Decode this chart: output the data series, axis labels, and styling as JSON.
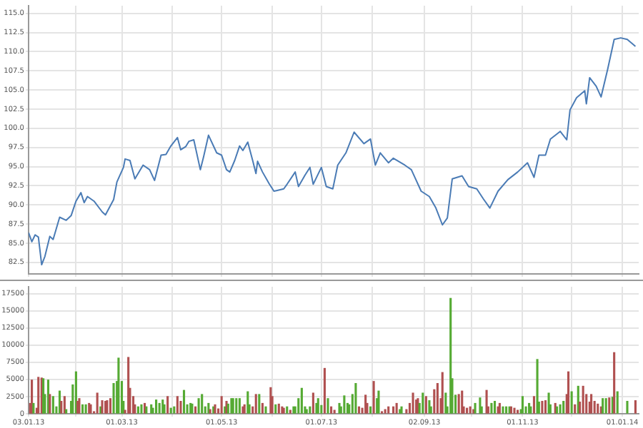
{
  "chart_data": [
    {
      "type": "line",
      "tick_labels": "y",
      "grid": true,
      "marker": "none",
      "line_style": "solid",
      "xlim": [
        "2013-01-03",
        "2014-01-11"
      ],
      "xticks": [
        {
          "value": "2013-01-03",
          "label": null
        },
        {
          "value": "2013-02-01",
          "label": null
        },
        {
          "value": "2013-03-01",
          "label": null
        },
        {
          "value": "2013-04-01",
          "label": null
        },
        {
          "value": "2013-05-01",
          "label": null
        },
        {
          "value": "2013-06-01",
          "label": null
        },
        {
          "value": "2013-07-01",
          "label": null
        },
        {
          "value": "2013-08-01",
          "label": null
        },
        {
          "value": "2013-09-02",
          "label": null
        },
        {
          "value": "2013-10-01",
          "label": null
        },
        {
          "value": "2013-11-01",
          "label": null
        },
        {
          "value": "2013-12-01",
          "label": null
        },
        {
          "value": "2014-01-01",
          "label": null
        }
      ],
      "ylim": [
        81,
        116
      ],
      "yticks": [
        {
          "value": 82.5,
          "label": "82.5"
        },
        {
          "value": 85,
          "label": "85.0"
        },
        {
          "value": 87.5,
          "label": "87.5"
        },
        {
          "value": 90,
          "label": "90.0"
        },
        {
          "value": 92.5,
          "label": "92.5"
        },
        {
          "value": 95,
          "label": "95.0"
        },
        {
          "value": 97.5,
          "label": "97.5"
        },
        {
          "value": 100,
          "label": "100.0"
        },
        {
          "value": 102.5,
          "label": "102.5"
        },
        {
          "value": 105,
          "label": "105.0"
        },
        {
          "value": 107.5,
          "label": "107.5"
        },
        {
          "value": 110,
          "label": "110.0"
        },
        {
          "value": 112.5,
          "label": "112.5"
        },
        {
          "value": 115,
          "label": "115.0"
        }
      ],
      "x": [
        "2013-01-03",
        "2013-01-05",
        "2013-01-07",
        "2013-01-09",
        "2013-01-11",
        "2013-01-13",
        "2013-01-16",
        "2013-01-18",
        "2013-01-22",
        "2013-01-26",
        "2013-01-29",
        "2013-02-01",
        "2013-02-04",
        "2013-02-06",
        "2013-02-08",
        "2013-02-12",
        "2013-02-17",
        "2013-02-19",
        "2013-02-24",
        "2013-02-26",
        "2013-03-02",
        "2013-03-03",
        "2013-03-06",
        "2013-03-09",
        "2013-03-14",
        "2013-03-18",
        "2013-03-21",
        "2013-03-25",
        "2013-03-28",
        "2013-03-31",
        "2013-04-04",
        "2013-04-06",
        "2013-04-09",
        "2013-04-11",
        "2013-04-14",
        "2013-04-18",
        "2013-04-20",
        "2013-04-23",
        "2013-04-28",
        "2013-05-01",
        "2013-05-04",
        "2013-05-06",
        "2013-05-09",
        "2013-05-12",
        "2013-05-14",
        "2013-05-17",
        "2013-05-20",
        "2013-05-22",
        "2013-05-23",
        "2013-05-26",
        "2013-05-30",
        "2013-06-02",
        "2013-06-04",
        "2013-06-08",
        "2013-06-10",
        "2013-06-15",
        "2013-06-17",
        "2013-06-21",
        "2013-06-24",
        "2013-06-26",
        "2013-07-01",
        "2013-07-04",
        "2013-07-08",
        "2013-07-11",
        "2013-07-16",
        "2013-07-21",
        "2013-07-27",
        "2013-07-31",
        "2013-08-03",
        "2013-08-06",
        "2013-08-11",
        "2013-08-14",
        "2013-08-21",
        "2013-08-25",
        "2013-08-31",
        "2013-09-05",
        "2013-09-09",
        "2013-09-13",
        "2013-09-16",
        "2013-09-19",
        "2013-09-25",
        "2013-09-29",
        "2013-10-04",
        "2013-10-08",
        "2013-10-12",
        "2013-10-17",
        "2013-10-23",
        "2013-10-29",
        "2013-11-04",
        "2013-11-08",
        "2013-11-11",
        "2013-11-15",
        "2013-11-18",
        "2013-11-24",
        "2013-11-28",
        "2013-11-30",
        "2013-12-04",
        "2013-12-09",
        "2013-12-10",
        "2013-12-12",
        "2013-12-16",
        "2013-12-19",
        "2013-12-23",
        "2013-12-27",
        "2013-12-31",
        "2014-01-04",
        "2014-01-09"
      ],
      "series": [
        {
          "color": "#4a7bb5",
          "values": [
            86.4,
            85.2,
            86.1,
            85.8,
            82.2,
            83.3,
            85.9,
            85.5,
            88.4,
            88.0,
            88.6,
            90.5,
            91.6,
            90.3,
            91.1,
            90.5,
            89.1,
            88.7,
            90.7,
            93.0,
            94.9,
            96.0,
            95.8,
            93.4,
            95.2,
            94.6,
            93.2,
            96.5,
            96.6,
            97.7,
            98.8,
            97.2,
            97.6,
            98.3,
            98.5,
            94.6,
            96.3,
            99.1,
            96.8,
            96.5,
            94.6,
            94.3,
            95.8,
            97.7,
            97.1,
            98.2,
            95.8,
            94.1,
            95.7,
            94.3,
            92.8,
            91.8,
            91.9,
            92.1,
            92.7,
            94.3,
            92.4,
            93.9,
            94.9,
            92.7,
            94.9,
            92.4,
            92.1,
            95.2,
            96.8,
            99.5,
            98.0,
            98.6,
            95.2,
            96.8,
            95.5,
            96.1,
            95.2,
            94.6,
            91.8,
            91.1,
            89.6,
            87.4,
            88.3,
            93.4,
            93.8,
            92.4,
            92.1,
            90.8,
            89.6,
            91.8,
            93.3,
            94.3,
            95.5,
            93.6,
            96.5,
            96.5,
            98.6,
            99.6,
            98.5,
            102.4,
            104.0,
            104.9,
            103.2,
            106.6,
            105.5,
            104.1,
            107.7,
            111.6,
            111.8,
            111.6,
            110.7
          ]
        }
      ]
    },
    {
      "type": "bar",
      "grid": true,
      "xlim": [
        "2013-01-03",
        "2014-01-11"
      ],
      "xticks": [
        {
          "value": "2013-01-03",
          "label": "03.01.13"
        },
        {
          "value": "2013-02-01",
          "label": null
        },
        {
          "value": "2013-03-01",
          "label": "01.03.13"
        },
        {
          "value": "2013-04-01",
          "label": null
        },
        {
          "value": "2013-05-01",
          "label": "01.05.13"
        },
        {
          "value": "2013-06-01",
          "label": null
        },
        {
          "value": "2013-07-01",
          "label": "01.07.13"
        },
        {
          "value": "2013-08-01",
          "label": null
        },
        {
          "value": "2013-09-02",
          "label": "02.09.13"
        },
        {
          "value": "2013-10-01",
          "label": null
        },
        {
          "value": "2013-11-01",
          "label": "01.11.13"
        },
        {
          "value": "2013-12-01",
          "label": null
        },
        {
          "value": "2014-01-01",
          "label": "01.01.14"
        }
      ],
      "ylim": [
        0,
        18500
      ],
      "yticks": [
        0,
        2500,
        5000,
        7500,
        10000,
        12500,
        15000,
        17500
      ],
      "x": [
        "2013-01-04",
        "2013-01-05",
        "2013-01-06",
        "2013-01-08",
        "2013-01-09",
        "2013-01-11",
        "2013-01-12",
        "2013-01-13",
        "2013-01-15",
        "2013-01-16",
        "2013-01-18",
        "2013-01-20",
        "2013-01-22",
        "2013-01-23",
        "2013-01-25",
        "2013-01-26",
        "2013-01-29",
        "2013-01-30",
        "2013-02-01",
        "2013-02-02",
        "2013-02-03",
        "2013-02-05",
        "2013-02-07",
        "2013-02-09",
        "2013-02-10",
        "2013-02-12",
        "2013-02-14",
        "2013-02-16",
        "2013-02-17",
        "2013-02-19",
        "2013-02-20",
        "2013-02-22",
        "2013-02-24",
        "2013-02-26",
        "2013-02-27",
        "2013-03-01",
        "2013-03-02",
        "2013-03-03",
        "2013-03-05",
        "2013-03-06",
        "2013-03-08",
        "2013-03-09",
        "2013-03-11",
        "2013-03-13",
        "2013-03-15",
        "2013-03-16",
        "2013-03-19",
        "2013-03-20",
        "2013-03-22",
        "2013-03-24",
        "2013-03-26",
        "2013-03-27",
        "2013-03-29",
        "2013-03-31",
        "2013-04-02",
        "2013-04-04",
        "2013-04-06",
        "2013-04-08",
        "2013-04-10",
        "2013-04-12",
        "2013-04-13",
        "2013-04-15",
        "2013-04-17",
        "2013-04-19",
        "2013-04-21",
        "2013-04-23",
        "2013-04-24",
        "2013-04-26",
        "2013-04-27",
        "2013-04-29",
        "2013-05-01",
        "2013-05-03",
        "2013-05-04",
        "2013-05-05",
        "2013-05-07",
        "2013-05-08",
        "2013-05-10",
        "2013-05-12",
        "2013-05-14",
        "2013-05-15",
        "2013-05-17",
        "2013-05-18",
        "2013-05-20",
        "2013-05-22",
        "2013-05-24",
        "2013-05-26",
        "2013-05-28",
        "2013-05-31",
        "2013-06-01",
        "2013-06-03",
        "2013-06-05",
        "2013-06-07",
        "2013-06-08",
        "2013-06-10",
        "2013-06-12",
        "2013-06-14",
        "2013-06-15",
        "2013-06-17",
        "2013-06-19",
        "2013-06-21",
        "2013-06-22",
        "2013-06-24",
        "2013-06-26",
        "2013-06-28",
        "2013-06-29",
        "2013-07-01",
        "2013-07-03",
        "2013-07-05",
        "2013-07-07",
        "2013-07-09",
        "2013-07-12",
        "2013-07-13",
        "2013-07-15",
        "2013-07-17",
        "2013-07-18",
        "2013-07-20",
        "2013-07-22",
        "2013-07-24",
        "2013-07-26",
        "2013-07-28",
        "2013-07-29",
        "2013-07-31",
        "2013-08-02",
        "2013-08-04",
        "2013-08-05",
        "2013-08-07",
        "2013-08-09",
        "2013-08-11",
        "2013-08-14",
        "2013-08-16",
        "2013-08-18",
        "2013-08-19",
        "2013-08-22",
        "2013-08-24",
        "2013-08-26",
        "2013-08-28",
        "2013-08-29",
        "2013-08-30",
        "2013-09-01",
        "2013-09-03",
        "2013-09-05",
        "2013-09-06",
        "2013-09-08",
        "2013-09-10",
        "2013-09-12",
        "2013-09-13",
        "2013-09-15",
        "2013-09-16",
        "2013-09-18",
        "2013-09-19",
        "2013-09-21",
        "2013-09-23",
        "2013-09-25",
        "2013-09-26",
        "2013-09-28",
        "2013-09-30",
        "2013-10-02",
        "2013-10-03",
        "2013-10-06",
        "2013-10-07",
        "2013-10-10",
        "2013-10-11",
        "2013-10-13",
        "2013-10-15",
        "2013-10-17",
        "2013-10-18",
        "2013-10-20",
        "2013-10-22",
        "2013-10-24",
        "2013-10-25",
        "2013-10-27",
        "2013-10-29",
        "2013-10-31",
        "2013-11-01",
        "2013-11-03",
        "2013-11-05",
        "2013-11-06",
        "2013-11-08",
        "2013-11-10",
        "2013-11-11",
        "2013-11-13",
        "2013-11-15",
        "2013-11-17",
        "2013-11-18",
        "2013-11-21",
        "2013-11-22",
        "2013-11-24",
        "2013-11-26",
        "2013-11-28",
        "2013-11-29",
        "2013-12-01",
        "2013-12-03",
        "2013-12-05",
        "2013-12-06",
        "2013-12-08",
        "2013-12-10",
        "2013-12-12",
        "2013-12-13",
        "2013-12-15",
        "2013-12-17",
        "2013-12-19",
        "2013-12-20",
        "2013-12-22",
        "2013-12-24",
        "2013-12-26",
        "2013-12-27",
        "2013-12-29",
        "2014-01-04",
        "2014-01-09"
      ],
      "values": [
        1500,
        4900,
        1500,
        800,
        5300,
        5200,
        5100,
        2800,
        4900,
        2800,
        2500,
        1000,
        3300,
        1800,
        2500,
        600,
        1800,
        4200,
        6100,
        1800,
        2200,
        1300,
        1300,
        1500,
        1300,
        300,
        3000,
        1000,
        1900,
        1800,
        1900,
        2200,
        4400,
        4700,
        8100,
        4700,
        1800,
        500,
        8200,
        3700,
        2500,
        1300,
        1000,
        1300,
        1500,
        1000,
        1300,
        800,
        2000,
        1500,
        2000,
        1300,
        2500,
        800,
        1000,
        2500,
        1800,
        3400,
        1300,
        1500,
        1400,
        1000,
        2200,
        2800,
        1000,
        1500,
        600,
        1000,
        1300,
        700,
        2500,
        1000,
        1800,
        1400,
        2200,
        2200,
        2200,
        2200,
        1000,
        1300,
        3200,
        1300,
        1000,
        2800,
        2800,
        1500,
        1000,
        3800,
        2500,
        1300,
        1400,
        1000,
        800,
        1000,
        500,
        1000,
        1000,
        2200,
        3700,
        1000,
        600,
        1000,
        3000,
        1500,
        2200,
        1200,
        6600,
        2200,
        1000,
        500,
        1500,
        1000,
        2600,
        1500,
        1300,
        2800,
        4400,
        1000,
        800,
        2700,
        1500,
        1000,
        4700,
        2200,
        3300,
        300,
        600,
        1000,
        1000,
        1500,
        600,
        1000,
        600,
        1500,
        3000,
        2000,
        2200,
        1500,
        3000,
        2500,
        1900,
        1000,
        3500,
        4400,
        2200,
        6000,
        3000,
        1000,
        16800,
        5100,
        2700,
        2800,
        3300,
        1000,
        800,
        1000,
        600,
        1500,
        2300,
        1000,
        3400,
        1000,
        1500,
        1800,
        1000,
        1500,
        1000,
        1000,
        1000,
        1000,
        800,
        500,
        600,
        2500,
        1000,
        1500,
        1000,
        2500,
        7900,
        1700,
        1800,
        1900,
        3000,
        1300,
        1500,
        1000,
        1300,
        1800,
        2800,
        6100,
        3200,
        1300,
        4000,
        1700,
        4000,
        2800,
        1700,
        2800,
        1800,
        1400,
        1000,
        2200,
        2200,
        2300,
        2400,
        8900,
        3200,
        1800,
        1900
      ],
      "colors": [
        "#b05050",
        "#b05050",
        "#55aa33",
        "#b05050",
        "#b05050",
        "#b05050",
        "#55aa33",
        "#55aa33",
        "#55aa33",
        "#b05050",
        "#55aa33",
        "#55aa33",
        "#55aa33",
        "#b05050",
        "#b05050",
        "#55aa33",
        "#55aa33",
        "#55aa33",
        "#55aa33",
        "#b05050",
        "#b05050",
        "#55aa33",
        "#55aa33",
        "#b05050",
        "#b05050",
        "#b05050",
        "#b05050",
        "#55aa33",
        "#b05050",
        "#b05050",
        "#b05050",
        "#b05050",
        "#55aa33",
        "#55aa33",
        "#55aa33",
        "#55aa33",
        "#55aa33",
        "#b05050",
        "#b05050",
        "#b05050",
        "#b05050",
        "#b05050",
        "#55aa33",
        "#55aa33",
        "#b05050",
        "#55aa33",
        "#55aa33",
        "#55aa33",
        "#55aa33",
        "#55aa33",
        "#55aa33",
        "#55aa33",
        "#b05050",
        "#55aa33",
        "#55aa33",
        "#b05050",
        "#b05050",
        "#55aa33",
        "#55aa33",
        "#55aa33",
        "#55aa33",
        "#b05050",
        "#55aa33",
        "#55aa33",
        "#55aa33",
        "#55aa33",
        "#b05050",
        "#55aa33",
        "#b05050",
        "#b05050",
        "#b05050",
        "#55aa33",
        "#b05050",
        "#55aa33",
        "#55aa33",
        "#55aa33",
        "#55aa33",
        "#55aa33",
        "#b05050",
        "#b05050",
        "#55aa33",
        "#55aa33",
        "#b05050",
        "#b05050",
        "#55aa33",
        "#b05050",
        "#55aa33",
        "#b05050",
        "#b05050",
        "#55aa33",
        "#b05050",
        "#b05050",
        "#b05050",
        "#55aa33",
        "#b05050",
        "#55aa33",
        "#55aa33",
        "#55aa33",
        "#55aa33",
        "#55aa33",
        "#55aa33",
        "#55aa33",
        "#b05050",
        "#55aa33",
        "#55aa33",
        "#55aa33",
        "#b05050",
        "#55aa33",
        "#b05050",
        "#b05050",
        "#55aa33",
        "#55aa33",
        "#55aa33",
        "#55aa33",
        "#55aa33",
        "#55aa33",
        "#55aa33",
        "#b05050",
        "#b05050",
        "#b05050",
        "#b05050",
        "#55aa33",
        "#b05050",
        "#55aa33",
        "#55aa33",
        "#b05050",
        "#b05050",
        "#b05050",
        "#b05050",
        "#b05050",
        "#55aa33",
        "#55aa33",
        "#b05050",
        "#b05050",
        "#b05050",
        "#b05050",
        "#b05050",
        "#55aa33",
        "#55aa33",
        "#b05050",
        "#55aa33",
        "#55aa33",
        "#b05050",
        "#b05050",
        "#b05050",
        "#b05050",
        "#55aa33",
        "#55aa33",
        "#55aa33",
        "#55aa33",
        "#55aa33",
        "#b05050",
        "#b05050",
        "#b05050",
        "#b05050",
        "#b05050",
        "#b05050",
        "#55aa33",
        "#55aa33",
        "#55aa33",
        "#b05050",
        "#b05050",
        "#55aa33",
        "#55aa33",
        "#b05050",
        "#b05050",
        "#55aa33",
        "#55aa33",
        "#55aa33",
        "#b05050",
        "#b05050",
        "#b05050",
        "#55aa33",
        "#55aa33",
        "#55aa33",
        "#55aa33",
        "#55aa33",
        "#b05050",
        "#55aa33",
        "#55aa33",
        "#b05050",
        "#b05050",
        "#55aa33",
        "#55aa33",
        "#b05050",
        "#55aa33",
        "#55aa33",
        "#55aa33",
        "#b05050",
        "#b05050",
        "#55aa33",
        "#b05050",
        "#55aa33",
        "#b05050",
        "#b05050",
        "#b05050",
        "#b05050",
        "#b05050",
        "#b05050",
        "#b05050",
        "#b05050",
        "#55aa33",
        "#55aa33",
        "#b05050",
        "#55aa33",
        "#b05050",
        "#55aa33",
        "#55aa33",
        "#b05050"
      ]
    }
  ]
}
